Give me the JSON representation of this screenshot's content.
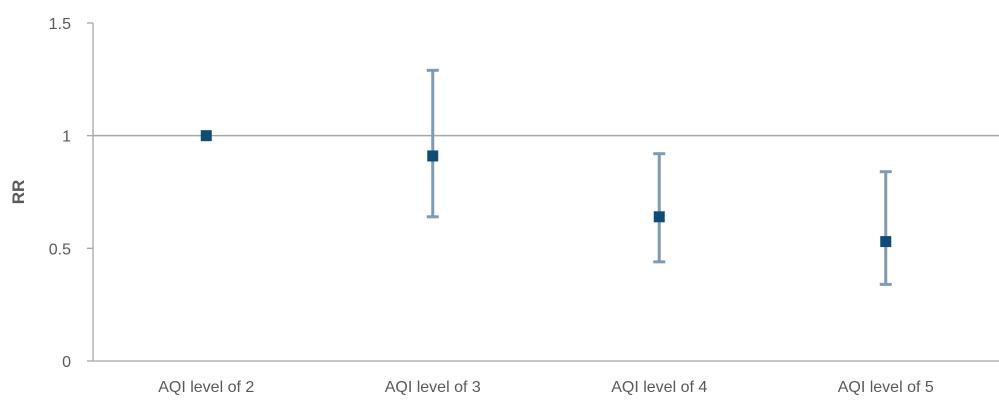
{
  "chart_data": {
    "type": "scatter",
    "title": "",
    "xlabel": "",
    "ylabel": "RR",
    "ylim": [
      0,
      1.5
    ],
    "yticks": [
      "0",
      "0.5",
      "1",
      "1.5"
    ],
    "categories": [
      "AQI level of 2",
      "AQI level of 3",
      "AQI level of 4",
      "AQI level of 5"
    ],
    "values": [
      1.0,
      0.91,
      0.64,
      0.53
    ],
    "error_bars": [
      {
        "lower": 1.0,
        "upper": 1.0
      },
      {
        "lower": 0.64,
        "upper": 1.29
      },
      {
        "lower": 0.44,
        "upper": 0.92
      },
      {
        "lower": 0.34,
        "upper": 0.84
      }
    ],
    "reference_line": 1,
    "grid": false,
    "legend": "none",
    "colors": {
      "marker": "#0f4c75",
      "error_bar": "#7f9bb2",
      "axis": "#a6a6a6",
      "reference": "#a6a6a6",
      "text": "#595959"
    }
  }
}
